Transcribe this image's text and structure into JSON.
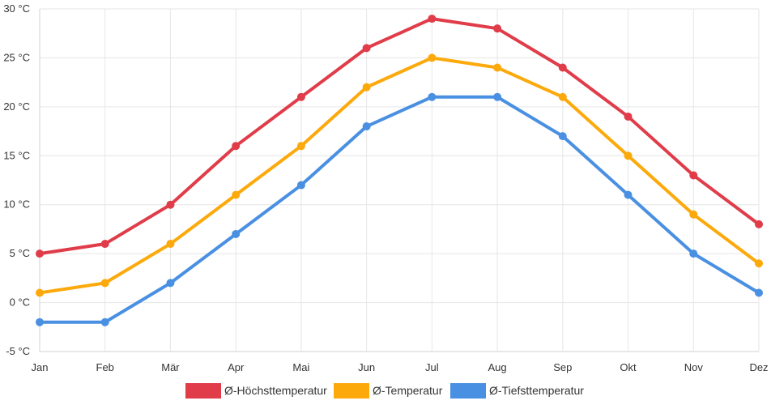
{
  "chart_data": {
    "type": "line",
    "title": "",
    "xlabel": "",
    "ylabel": "",
    "categories": [
      "Jan",
      "Feb",
      "Mär",
      "Apr",
      "Mai",
      "Jun",
      "Jul",
      "Aug",
      "Sep",
      "Okt",
      "Nov",
      "Dez"
    ],
    "y_ticks": [
      "-5 °C",
      "0 °C",
      "5 °C",
      "10 °C",
      "15 °C",
      "20 °C",
      "25 °C",
      "30 °C"
    ],
    "ylim": [
      -5,
      30
    ],
    "grid": true,
    "legend_position": "bottom",
    "series": [
      {
        "name": "Ø-Höchsttemperatur",
        "color": "#e03c49",
        "values": [
          5,
          6,
          10,
          16,
          21,
          26,
          29,
          28,
          24,
          19,
          13,
          8
        ]
      },
      {
        "name": "Ø-Temperatur",
        "color": "#fca90c",
        "values": [
          1,
          2,
          6,
          11,
          16,
          22,
          25,
          24,
          21,
          15,
          9,
          4
        ]
      },
      {
        "name": "Ø-Tiefsttemperatur",
        "color": "#4a90e2",
        "values": [
          -2,
          -2,
          2,
          7,
          12,
          18,
          21,
          21,
          17,
          11,
          5,
          1
        ]
      }
    ]
  }
}
